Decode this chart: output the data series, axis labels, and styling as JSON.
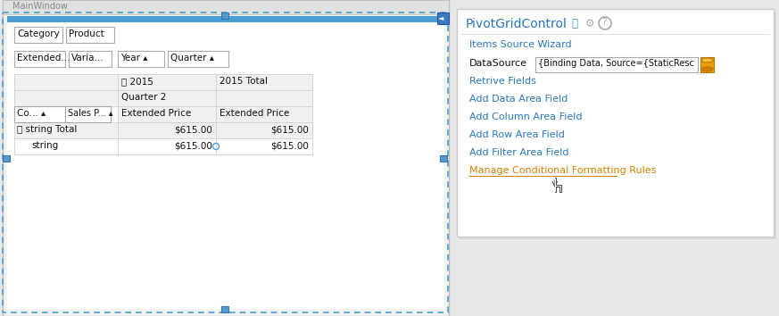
{
  "bg_color": "#e8e8e8",
  "white": "#ffffff",
  "blue_sel": "#4a9fd4",
  "blue_text": "#2878be",
  "orange_text": "#d48000",
  "black_text": "#111111",
  "gray_text": "#999999",
  "grid_line": "#d0d0d0",
  "header_bg": "#f0f0f0",
  "panel_title": "PivotGridControl",
  "panel_links": [
    "Items Source Wizard",
    "DATASOURCE_ROW",
    "Retrive Fields",
    "Add Data Area Field",
    "Add Column Area Field",
    "Add Row Area Field",
    "Add Filter Area Field"
  ],
  "panel_link_orange": "Manage Conditional Formatting Rules",
  "datasource_label": "DataSource",
  "datasource_value": "{Binding Data, Source={StaticResc",
  "window_title": "MainWindow",
  "cell_2015": "ⓢ 2015",
  "cell_2015total": "2015 Total",
  "cell_quarter2": "Quarter 2",
  "cell_extended1": "Extended Price",
  "cell_extended2": "Extended Price",
  "cell_string_total": "ⓢ string Total",
  "cell_string": "string",
  "cell_val": "$615.00"
}
